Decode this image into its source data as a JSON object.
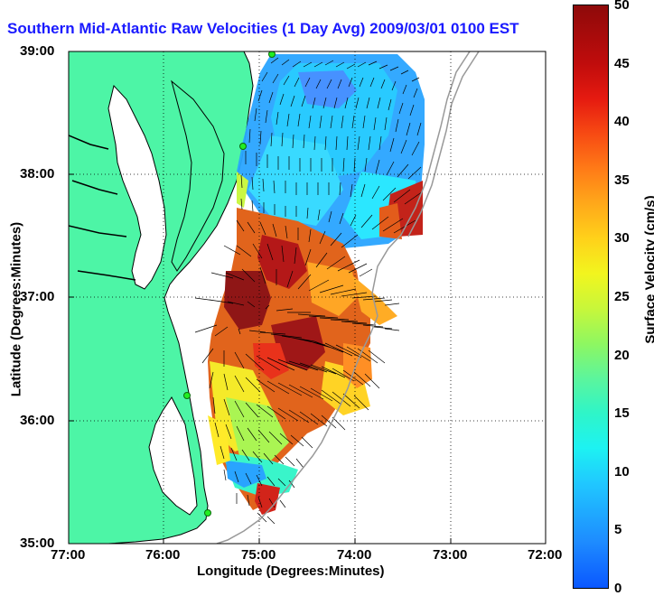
{
  "title": "Southern Mid-Atlantic Raw Velocities (1 Day Avg) 2009/03/01 0100 EST",
  "axes": {
    "xlabel": "Longitude (Degrees:Minutes)",
    "ylabel": "Latitude (Degrees:Minutes)",
    "x_ticks": [
      "77:00",
      "76:00",
      "75:00",
      "74:00",
      "73:00",
      "72:00"
    ],
    "y_ticks": [
      "39:00",
      "38:00",
      "37:00",
      "36:00",
      "35:00"
    ]
  },
  "colorbar": {
    "label": "Surface Velocity (cm/s)",
    "ticks": [
      "0",
      "5",
      "10",
      "15",
      "20",
      "25",
      "30",
      "35",
      "40",
      "45",
      "50"
    ],
    "min": 0,
    "max": 50
  },
  "colors": {
    "land": "#4df5a6",
    "coast": "#000000",
    "grid": "#000000",
    "bathymetry": "#999999",
    "stations": "#22ee22",
    "title": "#1a1aff"
  }
}
